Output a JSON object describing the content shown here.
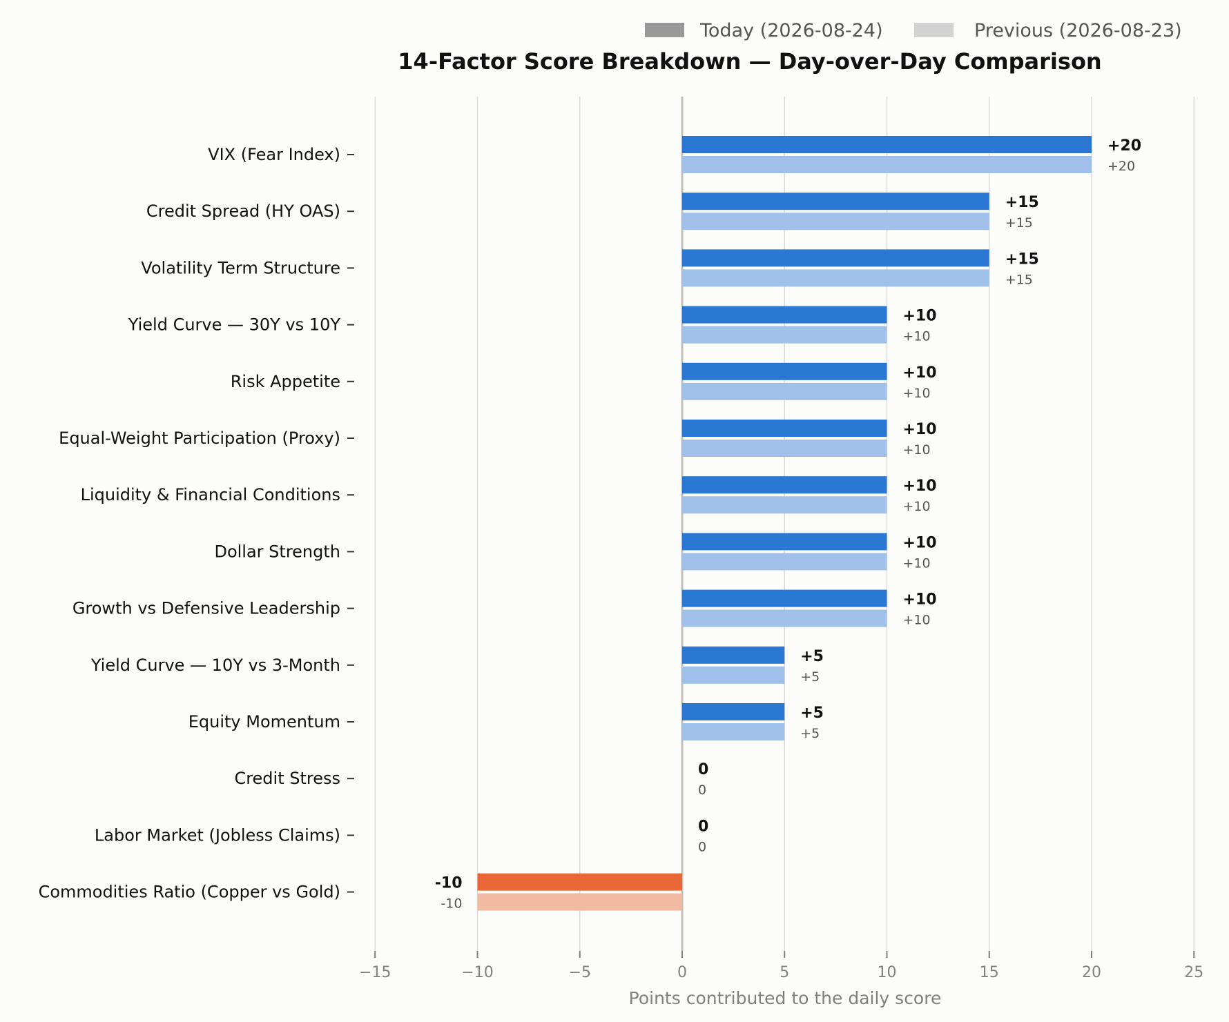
{
  "chart_data": {
    "type": "bar",
    "orientation": "horizontal",
    "title": "14-Factor Score Breakdown — Day-over-Day Comparison",
    "xlabel": "Points contributed to the daily score",
    "ylabel": "",
    "xlim": [
      -15,
      25
    ],
    "xticks": [
      -15,
      -10,
      -5,
      0,
      5,
      10,
      15,
      20,
      25
    ],
    "xtick_labels": [
      "−15",
      "−10",
      "−5",
      "0",
      "5",
      "10",
      "15",
      "20",
      "25"
    ],
    "grid": "vertical",
    "legend_position": "top-right",
    "categories": [
      "VIX (Fear Index)",
      "Credit Spread (HY OAS)",
      "Volatility Term Structure",
      "Yield Curve — 30Y vs 10Y",
      "Risk Appetite",
      "Equal-Weight Participation (Proxy)",
      "Liquidity & Financial Conditions",
      "Dollar Strength",
      "Growth vs Defensive Leadership",
      "Yield Curve — 10Y vs 3-Month",
      "Equity Momentum",
      "Credit Stress",
      "Labor Market (Jobless Claims)",
      "Commodities Ratio (Copper vs Gold)"
    ],
    "series": [
      {
        "name": "Today (2026-08-24)",
        "values": [
          20,
          15,
          15,
          10,
          10,
          10,
          10,
          10,
          10,
          5,
          5,
          0,
          0,
          -10
        ],
        "labels": [
          "+20",
          "+15",
          "+15",
          "+10",
          "+10",
          "+10",
          "+10",
          "+10",
          "+10",
          "+5",
          "+5",
          "0",
          "0",
          "-10"
        ]
      },
      {
        "name": "Previous (2026-08-23)",
        "values": [
          20,
          15,
          15,
          10,
          10,
          10,
          10,
          10,
          10,
          5,
          5,
          0,
          0,
          -10
        ],
        "labels": [
          "+20",
          "+15",
          "+15",
          "+10",
          "+10",
          "+10",
          "+10",
          "+10",
          "+10",
          "+5",
          "+5",
          "0",
          "0",
          "-10"
        ]
      }
    ],
    "colors": {
      "positive_today": "#2b78d4",
      "positive_previous": "#a0c0ea",
      "negative_today": "#ea6737",
      "negative_previous": "#f2b9a1",
      "legend_today": "#999999",
      "legend_previous": "#d2d2d2",
      "grid": "#dcdcdc",
      "zero_line": "#c3c0b8",
      "axis_text": "#808080"
    }
  }
}
